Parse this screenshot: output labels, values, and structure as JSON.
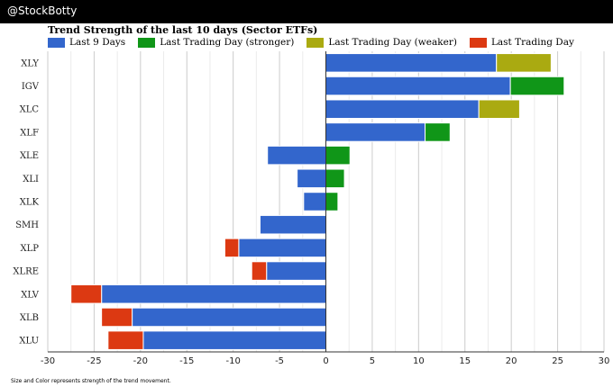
{
  "header": {
    "brand": "@StockBotty"
  },
  "footnote": "Size and Color represents strength of the trend movement.",
  "colors": {
    "last9": "#3366cc",
    "stronger": "#109618",
    "weaker": "#aaaa11",
    "last": "#dc3912"
  },
  "chart_data": {
    "type": "bar",
    "orientation": "horizontal",
    "stacked": true,
    "title": "Trend Strength of the last 10 days (Sector ETFs)",
    "xlabel": "",
    "ylabel": "",
    "xlim": [
      -30,
      30
    ],
    "xticks": [
      -30,
      -25,
      -20,
      -15,
      -10,
      -5,
      0,
      5,
      10,
      15,
      20,
      25,
      30
    ],
    "grid": true,
    "legend_position": "top-left",
    "legend": [
      {
        "label": "Last 9 Days",
        "color_key": "last9"
      },
      {
        "label": "Last Trading Day (stronger)",
        "color_key": "stronger"
      },
      {
        "label": "Last Trading Day (weaker)",
        "color_key": "weaker"
      },
      {
        "label": "Last Trading Day",
        "color_key": "last"
      }
    ],
    "categories": [
      "XLY",
      "IGV",
      "XLC",
      "XLF",
      "XLE",
      "XLI",
      "XLK",
      "SMH",
      "XLP",
      "XLRE",
      "XLV",
      "XLB",
      "XLU"
    ],
    "series": [
      {
        "name": "Last 9 Days",
        "color_key": "last9",
        "values": [
          18.4,
          19.9,
          16.5,
          10.7,
          -6.3,
          -3.1,
          -2.4,
          -7.1,
          -9.4,
          -6.4,
          -24.2,
          -20.9,
          -19.7
        ]
      },
      {
        "name": "Last Trading Day (stronger)",
        "color_key": "stronger",
        "values": [
          0,
          5.8,
          0,
          2.7,
          2.6,
          2.0,
          1.3,
          0,
          0,
          0,
          0,
          0,
          0
        ]
      },
      {
        "name": "Last Trading Day (weaker)",
        "color_key": "weaker",
        "values": [
          5.9,
          0,
          4.4,
          0,
          0,
          0,
          0,
          0,
          0,
          0,
          0,
          0,
          0
        ]
      },
      {
        "name": "Last Trading Day",
        "color_key": "last",
        "values": [
          0,
          0,
          0,
          0,
          0,
          0,
          0,
          0,
          -1.5,
          -1.6,
          -3.3,
          -3.3,
          -3.8
        ]
      }
    ]
  }
}
